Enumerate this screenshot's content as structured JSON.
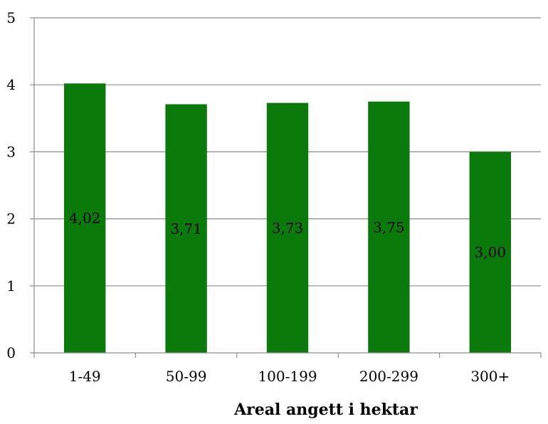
{
  "chart_data": {
    "type": "bar",
    "categories": [
      "1-49",
      "50-99",
      "100-199",
      "200-299",
      "300+"
    ],
    "values": [
      4.02,
      3.71,
      3.73,
      3.75,
      3.0
    ],
    "data_labels": [
      "4,02",
      "3,71",
      "3,73",
      "3,75",
      "3,00"
    ],
    "title": "",
    "xlabel": "Areal angett i hektar",
    "ylabel": "",
    "ylim": [
      0,
      5
    ],
    "yticks": [
      "0",
      "1",
      "2",
      "3",
      "4",
      "5"
    ],
    "grid": true,
    "bar_color": "#0a7a0a",
    "grid_color": "#8c8c8c"
  }
}
